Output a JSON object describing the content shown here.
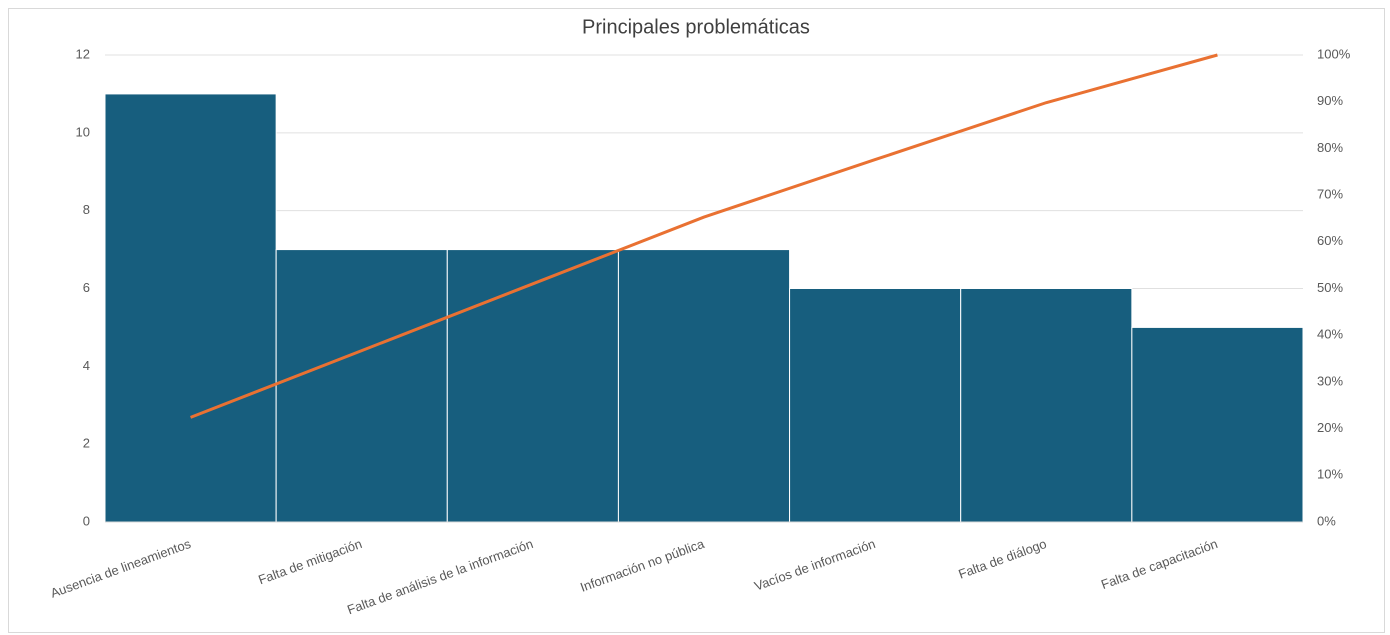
{
  "chart_data": {
    "type": "pareto",
    "title": "Principales problemáticas",
    "categories": [
      "Ausencia de  lineamientos",
      "Falta de mitigación",
      "Falta de análisis de la información",
      "Información no pública",
      "Vacíos de información",
      "Falta de diálogo",
      "Falta de capacitación"
    ],
    "series": [
      {
        "color": "#175e7e",
        "values": [
          11,
          7,
          7,
          7,
          6,
          6,
          5
        ]
      },
      {
        "color": "#e97132",
        "axis": "y2",
        "values": [
          22.4,
          36.7,
          51.0,
          65.3,
          77.6,
          89.8,
          100
        ]
      }
    ],
    "ylim": [
      0,
      12
    ],
    "yticks": [
      0,
      2,
      4,
      6,
      8,
      10,
      12
    ],
    "y2lim": [
      0,
      100
    ],
    "y2ticks": [
      {
        "value": 0,
        "label": "0%"
      },
      {
        "value": 10,
        "label": "10%"
      },
      {
        "value": 20,
        "label": "20%"
      },
      {
        "value": 30,
        "label": "30%"
      },
      {
        "value": 40,
        "label": "40%"
      },
      {
        "value": 50,
        "label": "50%"
      },
      {
        "value": 60,
        "label": "60%"
      },
      {
        "value": 70,
        "label": "70%"
      },
      {
        "value": 80,
        "label": "80%"
      },
      {
        "value": 90,
        "label": "90%"
      },
      {
        "value": 100,
        "label": "100%"
      }
    ],
    "grid": true
  }
}
